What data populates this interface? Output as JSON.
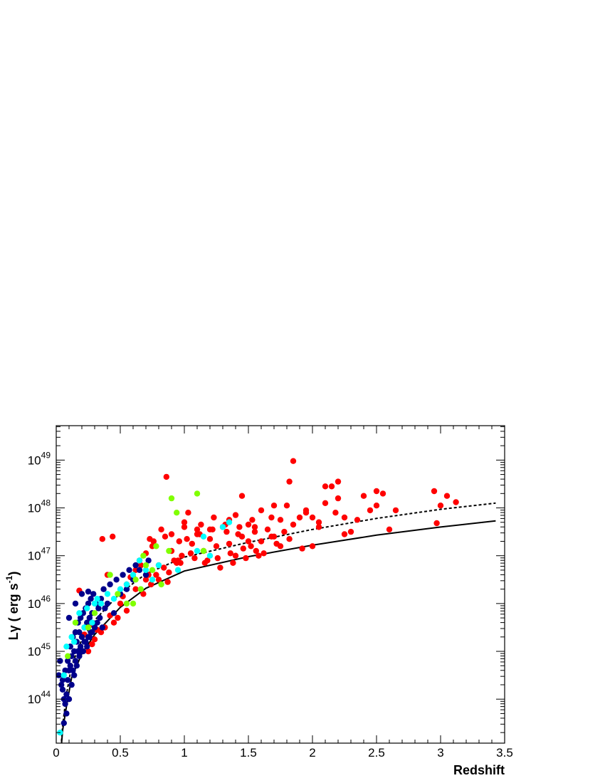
{
  "chart_data": {
    "type": "scatter",
    "title": "",
    "xlabel": "Redshift",
    "ylabel": {
      "main": "Lγ ( erg s",
      "sup": "-1",
      "close": ")"
    },
    "xlim": [
      0,
      3.5
    ],
    "ylim_log10": [
      43.08,
      49.72
    ],
    "y_scale": "log",
    "grid": false,
    "legend": "none",
    "x_ticks": [
      {
        "value": 0,
        "label": "0"
      },
      {
        "value": 0.5,
        "label": "0.5"
      },
      {
        "value": 1,
        "label": "1"
      },
      {
        "value": 1.5,
        "label": "1.5"
      },
      {
        "value": 2,
        "label": "2"
      },
      {
        "value": 2.5,
        "label": "2.5"
      },
      {
        "value": 3,
        "label": "3"
      },
      {
        "value": 3.5,
        "label": "3.5"
      }
    ],
    "y_ticks": [
      {
        "log10": 44,
        "base": "10",
        "exp": "44"
      },
      {
        "log10": 45,
        "base": "10",
        "exp": "45"
      },
      {
        "log10": 46,
        "base": "10",
        "exp": "46"
      },
      {
        "log10": 47,
        "base": "10",
        "exp": "47"
      },
      {
        "log10": 48,
        "base": "10",
        "exp": "48"
      },
      {
        "log10": 49,
        "base": "10",
        "exp": "49"
      }
    ],
    "curves": [
      {
        "style": "solid",
        "color": "#000000",
        "x": [
          0.03,
          0.05,
          0.08,
          0.12,
          0.2,
          0.3,
          0.5,
          0.7,
          1.0,
          1.5,
          2.0,
          2.5,
          3.0,
          3.43
        ],
        "log10_y": [
          42.7,
          43.35,
          43.85,
          44.45,
          44.95,
          45.35,
          45.92,
          46.32,
          46.68,
          46.98,
          47.22,
          47.43,
          47.6,
          47.73
        ]
      },
      {
        "style": "dashed",
        "color": "#000000",
        "x": [
          0.03,
          0.05,
          0.08,
          0.12,
          0.2,
          0.3,
          0.5,
          0.7,
          1.0,
          1.5,
          2.0,
          2.5,
          3.0,
          3.43
        ],
        "log10_y": [
          42.7,
          43.45,
          44.1,
          44.7,
          45.25,
          45.65,
          46.22,
          46.62,
          46.97,
          47.28,
          47.55,
          47.78,
          47.97,
          48.1
        ]
      }
    ],
    "series": [
      {
        "color": "#ff0000",
        "x": [
          0.86,
          0.18,
          0.62,
          0.55,
          0.4,
          0.95,
          1.0,
          1.1,
          1.2,
          1.35,
          1.45,
          1.55,
          1.6,
          1.68,
          1.75,
          1.82,
          1.85,
          1.95,
          2.0,
          2.05,
          2.1,
          2.15,
          2.18,
          2.2,
          2.25,
          2.3,
          2.4,
          2.45,
          2.5,
          2.55,
          2.6,
          2.65,
          2.95,
          3.0,
          3.05,
          3.12,
          2.97,
          2.25,
          2.0,
          1.7,
          1.5,
          1.4,
          0.7,
          0.8,
          0.9,
          0.85,
          0.75,
          0.65,
          0.72,
          0.8,
          0.92,
          1.05,
          1.15,
          1.25,
          1.35,
          1.45,
          1.55,
          1.65,
          1.75,
          1.85,
          1.95,
          2.05,
          1.02,
          1.12,
          1.22,
          1.32,
          1.42,
          1.52,
          1.62,
          1.72,
          1.82,
          1.92,
          0.96,
          1.06,
          1.16,
          1.26,
          1.36,
          1.46,
          1.56,
          0.58,
          0.62,
          0.68,
          0.74,
          0.78,
          0.84,
          0.88,
          0.94,
          0.98,
          1.08,
          1.18,
          1.28,
          1.38,
          1.48,
          1.58,
          1.68,
          1.78,
          0.52,
          0.5,
          0.55,
          0.48,
          0.45,
          0.42,
          0.38,
          0.35,
          0.3,
          0.28,
          0.25,
          0.22,
          0.26,
          0.32,
          0.6,
          0.66,
          0.7,
          0.76,
          0.82,
          0.9,
          1.0,
          1.1,
          1.2,
          1.3,
          1.4,
          1.5,
          1.6,
          1.7,
          1.8,
          1.9,
          2.1,
          2.2,
          2.35,
          2.5,
          0.44,
          0.36,
          1.03,
          1.13,
          1.23,
          1.33,
          1.43,
          1.53,
          0.73,
          0.87,
          0.97
        ],
        "log10_y": [
          48.65,
          46.27,
          46.7,
          46.4,
          46.6,
          46.9,
          47.6,
          47.55,
          47.35,
          47.75,
          48.25,
          47.5,
          47.3,
          47.8,
          47.2,
          48.55,
          48.98,
          47.9,
          47.8,
          47.6,
          48.45,
          48.45,
          47.9,
          48.55,
          47.8,
          47.5,
          48.25,
          47.95,
          48.35,
          48.3,
          47.55,
          47.95,
          48.35,
          48.05,
          48.25,
          48.12,
          47.68,
          47.45,
          47.2,
          47.4,
          47.3,
          47.0,
          46.5,
          46.8,
          47.1,
          47.4,
          47.2,
          46.9,
          46.6,
          46.5,
          46.9,
          47.05,
          47.1,
          47.2,
          47.25,
          47.4,
          47.6,
          47.55,
          47.75,
          47.65,
          47.95,
          47.7,
          47.35,
          47.45,
          47.55,
          47.65,
          47.45,
          47.2,
          47.05,
          47.25,
          47.35,
          47.15,
          47.3,
          47.25,
          46.85,
          46.95,
          47.05,
          47.15,
          47.1,
          46.55,
          46.3,
          46.2,
          46.4,
          46.6,
          46.75,
          46.65,
          46.85,
          47.0,
          46.95,
          46.9,
          46.75,
          46.85,
          46.95,
          47.0,
          47.4,
          47.5,
          46.15,
          46.0,
          45.85,
          45.7,
          45.6,
          45.75,
          45.5,
          45.4,
          45.25,
          45.15,
          45.0,
          45.35,
          45.55,
          45.45,
          46.55,
          46.8,
          47.05,
          47.3,
          47.55,
          47.45,
          47.7,
          47.45,
          47.55,
          47.6,
          47.85,
          47.65,
          47.95,
          48.05,
          48.05,
          47.8,
          48.1,
          48.2,
          47.75,
          48.05,
          47.4,
          47.35,
          47.9,
          47.65,
          47.8,
          47.5,
          47.6,
          47.75,
          47.35,
          46.45,
          46.85
        ]
      },
      {
        "color": "#00008b",
        "x": [
          0.02,
          0.03,
          0.04,
          0.05,
          0.06,
          0.07,
          0.08,
          0.09,
          0.1,
          0.11,
          0.12,
          0.13,
          0.14,
          0.15,
          0.16,
          0.17,
          0.18,
          0.19,
          0.2,
          0.21,
          0.22,
          0.23,
          0.24,
          0.25,
          0.26,
          0.27,
          0.28,
          0.3,
          0.32,
          0.34,
          0.36,
          0.38,
          0.4,
          0.45,
          0.5,
          0.55,
          0.6,
          0.65,
          0.7,
          0.06,
          0.08,
          0.1,
          0.12,
          0.14,
          0.16,
          0.18,
          0.2,
          0.22,
          0.24,
          0.26,
          0.28,
          0.3,
          0.05,
          0.07,
          0.09,
          0.11,
          0.13,
          0.15,
          0.17,
          0.19,
          0.21,
          0.23,
          0.25,
          0.27,
          0.29,
          0.31,
          0.33,
          0.35,
          0.37,
          0.42,
          0.47,
          0.52,
          0.57,
          0.62,
          0.72,
          0.2,
          0.25,
          0.1,
          0.15
        ],
        "log10_y": [
          44.5,
          44.8,
          44.3,
          44.2,
          44.0,
          43.9,
          44.1,
          44.4,
          44.6,
          44.7,
          44.9,
          44.6,
          45.0,
          44.8,
          45.2,
          45.0,
          45.4,
          45.1,
          45.3,
          45.0,
          45.5,
          45.2,
          45.6,
          45.3,
          45.7,
          45.4,
          45.8,
          45.5,
          45.6,
          45.7,
          45.5,
          45.9,
          46.0,
          45.8,
          46.2,
          46.3,
          46.5,
          46.7,
          46.6,
          43.5,
          43.7,
          44.0,
          44.3,
          44.5,
          44.7,
          44.9,
          45.0,
          45.2,
          45.1,
          45.3,
          45.4,
          45.5,
          44.4,
          44.6,
          44.8,
          45.1,
          45.3,
          45.4,
          45.6,
          45.7,
          45.8,
          45.9,
          46.0,
          46.1,
          46.2,
          46.0,
          45.9,
          46.1,
          46.3,
          46.4,
          46.5,
          46.6,
          46.7,
          46.8,
          46.9,
          46.2,
          46.25,
          45.7,
          46.0
        ]
      },
      {
        "color": "#00ffff",
        "x": [
          0.03,
          0.06,
          0.08,
          0.12,
          0.18,
          0.22,
          0.28,
          0.32,
          0.35,
          0.4,
          0.45,
          0.5,
          0.55,
          0.6,
          0.65,
          0.7,
          0.75,
          0.8,
          0.95,
          1.1,
          1.2,
          1.3,
          1.35,
          1.15,
          0.3,
          0.14,
          0.24
        ],
        "log10_y": [
          43.3,
          44.5,
          45.1,
          45.3,
          45.8,
          45.5,
          45.6,
          46.1,
          46.0,
          46.2,
          46.1,
          46.3,
          46.4,
          46.6,
          46.9,
          46.7,
          46.5,
          46.8,
          46.7,
          47.1,
          47.0,
          47.6,
          47.7,
          47.4,
          46.0,
          45.2,
          45.9
        ]
      },
      {
        "color": "#80ff00",
        "x": [
          0.09,
          0.15,
          0.25,
          0.3,
          0.42,
          0.48,
          0.55,
          0.62,
          0.66,
          0.68,
          0.7,
          0.75,
          0.82,
          0.88,
          0.9,
          0.94,
          1.1,
          1.15,
          0.6,
          0.78
        ],
        "log10_y": [
          44.9,
          45.6,
          45.5,
          45.8,
          46.6,
          46.2,
          46.0,
          46.5,
          46.3,
          47.0,
          46.8,
          46.7,
          46.4,
          47.1,
          48.2,
          47.9,
          48.3,
          47.1,
          46.0,
          47.2
        ]
      }
    ]
  }
}
